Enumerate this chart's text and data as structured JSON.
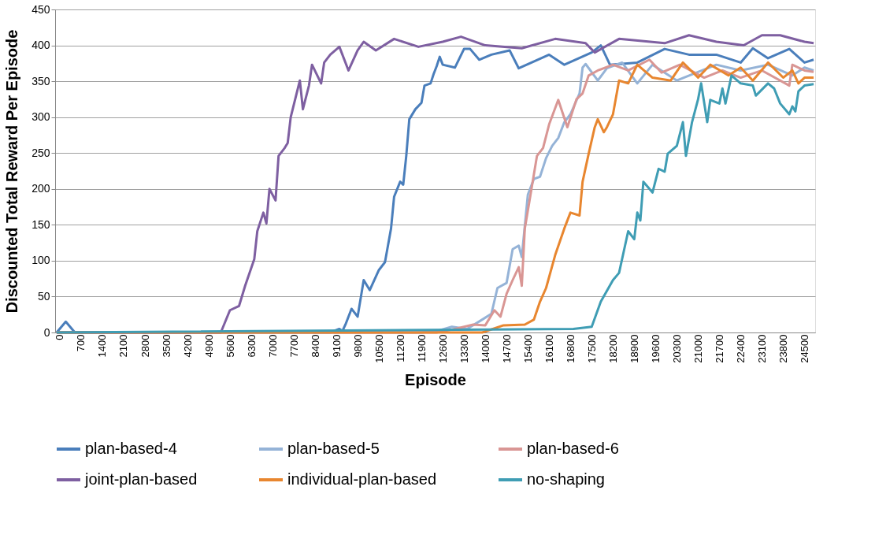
{
  "chart_data": {
    "type": "line",
    "xlabel": "Episode",
    "ylabel": "Discounted Total Reward Per Episode",
    "xlim": [
      -50,
      24950
    ],
    "xticks": [
      0,
      700,
      1400,
      2100,
      2800,
      3500,
      4200,
      4900,
      5600,
      6300,
      7000,
      7700,
      8400,
      9100,
      9800,
      10500,
      11200,
      11900,
      12600,
      13300,
      14000,
      14700,
      15400,
      16100,
      16800,
      17500,
      18200,
      18900,
      19600,
      20300,
      21000,
      21700,
      22400,
      23100,
      23800,
      24500
    ],
    "ylim": [
      0,
      450
    ],
    "yticks": [
      0,
      50,
      100,
      150,
      200,
      250,
      300,
      350,
      400,
      450
    ],
    "grid": "y",
    "legend": "bottom",
    "series": [
      {
        "name": "plan-based-4",
        "color": "#4a7ebb",
        "x": [
          0,
          300,
          600,
          9000,
          9300,
          9400,
          9500,
          9700,
          9900,
          10100,
          10300,
          10600,
          10800,
          11000,
          11100,
          11300,
          11400,
          11500,
          11600,
          11800,
          12000,
          12100,
          12300,
          12400,
          12500,
          12600,
          12700,
          13100,
          13400,
          13600,
          13900,
          14300,
          14900,
          15200,
          16200,
          16700,
          17600,
          17900,
          18200,
          19100,
          20000,
          20800,
          21700,
          22500,
          22900,
          23400,
          24100,
          24600,
          24900
        ],
        "values": [
          0,
          15,
          0,
          0,
          5,
          2,
          11,
          33,
          22,
          73,
          59,
          87,
          98,
          145,
          189,
          210,
          206,
          246,
          297,
          311,
          320,
          344,
          347,
          360,
          371,
          384,
          373,
          369,
          395,
          395,
          380,
          387,
          393,
          368,
          387,
          373,
          390,
          400,
          373,
          376,
          395,
          387,
          387,
          376,
          396,
          382,
          395,
          376,
          380
        ]
      },
      {
        "name": "plan-based-5",
        "color": "#95b3d7",
        "x": [
          0,
          12000,
          12600,
          13000,
          13500,
          14000,
          14300,
          14500,
          14800,
          15000,
          15200,
          15300,
          15500,
          15700,
          15900,
          16100,
          16300,
          16500,
          16700,
          16900,
          17200,
          17300,
          17400,
          17800,
          18100,
          18600,
          19100,
          19600,
          20400,
          21700,
          22500,
          23400,
          24200,
          24600,
          24900
        ],
        "values": [
          0,
          0,
          3,
          8,
          5,
          18,
          26,
          62,
          69,
          116,
          121,
          105,
          192,
          214,
          217,
          243,
          260,
          271,
          293,
          304,
          333,
          369,
          374,
          351,
          368,
          376,
          347,
          373,
          351,
          373,
          365,
          373,
          358,
          369,
          365
        ]
      },
      {
        "name": "plan-based-6",
        "color": "#d99694",
        "x": [
          0,
          12500,
          13000,
          13700,
          14100,
          14400,
          14600,
          14800,
          15000,
          15200,
          15300,
          15400,
          15600,
          15800,
          16000,
          16200,
          16500,
          16800,
          17100,
          17300,
          17500,
          17800,
          18300,
          18800,
          19500,
          19900,
          20500,
          21300,
          21900,
          22500,
          23200,
          24100,
          24200,
          24600,
          24900
        ],
        "values": [
          0,
          0,
          4,
          11,
          10,
          31,
          22,
          54,
          73,
          91,
          65,
          145,
          195,
          246,
          257,
          290,
          324,
          286,
          325,
          333,
          358,
          365,
          373,
          365,
          380,
          362,
          373,
          355,
          365,
          355,
          365,
          344,
          373,
          365,
          363
        ]
      },
      {
        "name": "joint-plan-based",
        "color": "#7e5fa1",
        "x": [
          0,
          5000,
          5400,
          5700,
          6000,
          6200,
          6500,
          6600,
          6800,
          6900,
          7000,
          7200,
          7300,
          7500,
          7600,
          7700,
          8000,
          8100,
          8300,
          8400,
          8700,
          8800,
          9000,
          9300,
          9600,
          9900,
          10100,
          10500,
          11100,
          11900,
          12700,
          13300,
          14100,
          15300,
          16400,
          17400,
          17700,
          18500,
          20000,
          20800,
          21700,
          22600,
          23200,
          23800,
          24600,
          24900
        ],
        "values": [
          0,
          0,
          0,
          31,
          37,
          65,
          102,
          141,
          167,
          152,
          200,
          184,
          246,
          257,
          264,
          300,
          351,
          311,
          344,
          373,
          347,
          376,
          387,
          398,
          365,
          393,
          405,
          393,
          409,
          398,
          405,
          412,
          400,
          396,
          409,
          403,
          390,
          409,
          403,
          414,
          405,
          400,
          414,
          414,
          405,
          403
        ]
      },
      {
        "name": "individual-plan-based",
        "color": "#e8862f",
        "x": [
          0,
          14000,
          14700,
          15400,
          15700,
          15900,
          16100,
          16400,
          16700,
          16900,
          17200,
          17300,
          17500,
          17700,
          17800,
          18000,
          18100,
          18300,
          18500,
          18800,
          19100,
          19600,
          20200,
          20600,
          21100,
          21500,
          22100,
          22500,
          22900,
          23400,
          23900,
          24200,
          24400,
          24600,
          24900
        ],
        "values": [
          0,
          0,
          10,
          11,
          18,
          43,
          62,
          108,
          145,
          167,
          163,
          210,
          249,
          286,
          297,
          279,
          286,
          304,
          351,
          347,
          373,
          355,
          351,
          376,
          355,
          373,
          358,
          369,
          351,
          376,
          355,
          365,
          347,
          355,
          355
        ]
      },
      {
        "name": "no-shaping",
        "color": "#3f9db4",
        "x": [
          0,
          17000,
          17600,
          17900,
          18300,
          18500,
          18800,
          19000,
          19100,
          19200,
          19300,
          19600,
          19800,
          20000,
          20100,
          20400,
          20600,
          20700,
          20900,
          21100,
          21200,
          21400,
          21500,
          21800,
          21900,
          22000,
          22200,
          22500,
          22900,
          23000,
          23400,
          23600,
          23800,
          24100,
          24200,
          24300,
          24400,
          24600,
          24900
        ],
        "values": [
          0,
          5,
          8,
          43,
          73,
          83,
          141,
          130,
          167,
          156,
          210,
          195,
          228,
          224,
          249,
          260,
          293,
          246,
          293,
          325,
          347,
          293,
          324,
          319,
          340,
          319,
          358,
          347,
          344,
          330,
          347,
          340,
          319,
          304,
          315,
          308,
          336,
          344,
          346
        ]
      }
    ]
  }
}
